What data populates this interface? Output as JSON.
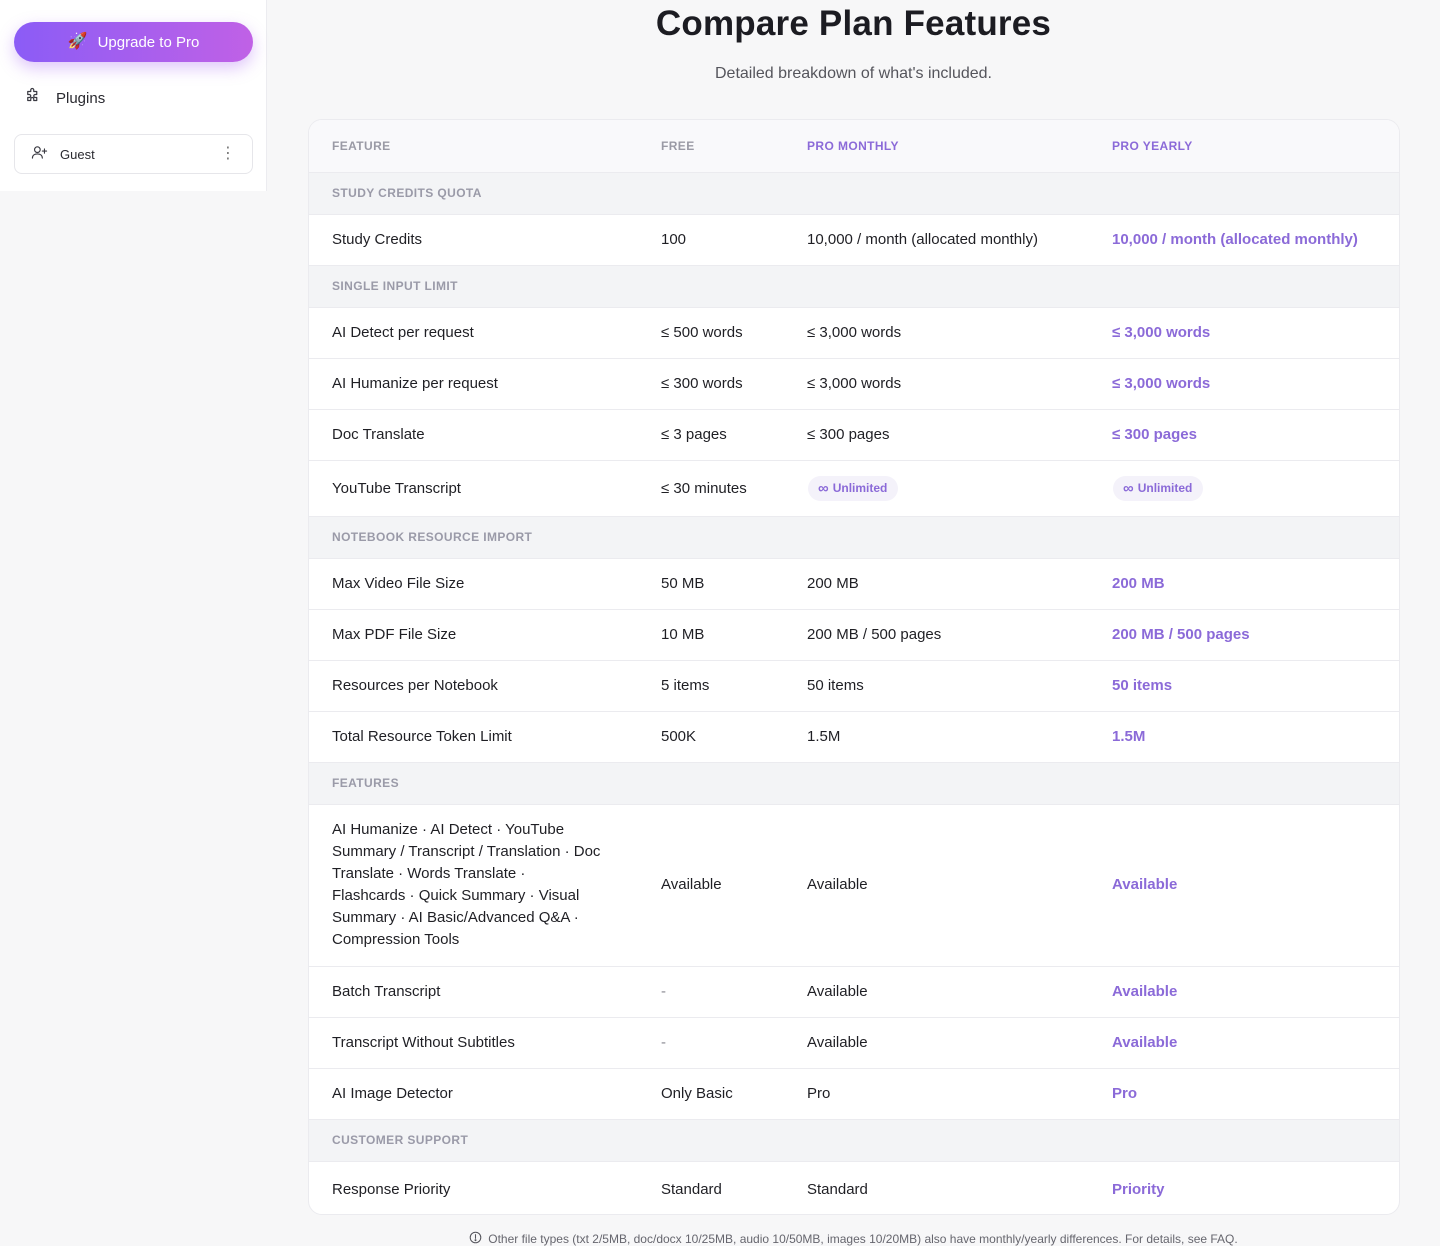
{
  "sidebar": {
    "upgrade_label": "Upgrade to Pro",
    "plugins_label": "Plugins",
    "user_label": "Guest"
  },
  "header": {
    "title": "Compare Plan Features",
    "subtitle": "Detailed breakdown of what's included."
  },
  "table": {
    "columns": [
      "FEATURE",
      "FREE",
      "PRO MONTHLY",
      "PRO YEARLY"
    ],
    "sections": [
      {
        "title": "STUDY CREDITS QUOTA",
        "rows": [
          {
            "feature": "Study Credits",
            "free": "100",
            "pro_monthly": "10,000 / month (allocated monthly)",
            "pro_yearly": "10,000 / month (allocated monthly)"
          }
        ]
      },
      {
        "title": "SINGLE INPUT LIMIT",
        "rows": [
          {
            "feature": "AI Detect per request",
            "free": "≤ 500 words",
            "pro_monthly": "≤ 3,000 words",
            "pro_yearly": "≤ 3,000 words"
          },
          {
            "feature": "AI Humanize per request",
            "free": "≤ 300 words",
            "pro_monthly": "≤ 3,000 words",
            "pro_yearly": "≤ 3,000 words"
          },
          {
            "feature": "Doc Translate",
            "free": "≤ 3 pages",
            "pro_monthly": "≤ 300 pages",
            "pro_yearly": "≤ 300 pages"
          },
          {
            "feature": "YouTube Transcript",
            "free": "≤ 30 minutes",
            "pro_monthly": "Unlimited",
            "pro_yearly": "Unlimited"
          }
        ]
      },
      {
        "title": "NOTEBOOK RESOURCE IMPORT",
        "rows": [
          {
            "feature": "Max Video File Size",
            "free": "50 MB",
            "pro_monthly": "200 MB",
            "pro_yearly": "200 MB"
          },
          {
            "feature": "Max PDF File Size",
            "free": "10 MB",
            "pro_monthly": "200 MB / 500 pages",
            "pro_yearly": "200 MB / 500 pages"
          },
          {
            "feature": "Resources per Notebook",
            "free": "5 items",
            "pro_monthly": "50 items",
            "pro_yearly": "50 items"
          },
          {
            "feature": "Total Resource Token Limit",
            "free": "500K",
            "pro_monthly": "1.5M",
            "pro_yearly": "1.5M"
          }
        ]
      },
      {
        "title": "FEATURES",
        "rows": [
          {
            "feature": "AI Humanize · AI Detect · YouTube Summary / Transcript / Translation · Doc Translate · Words Translate · Flashcards · Quick Summary · Visual Summary · AI Basic/Advanced Q&A · Compression Tools",
            "free": "Available",
            "pro_monthly": "Available",
            "pro_yearly": "Available"
          },
          {
            "feature": "Batch Transcript",
            "free": "-",
            "pro_monthly": "Available",
            "pro_yearly": "Available"
          },
          {
            "feature": "Transcript Without Subtitles",
            "free": "-",
            "pro_monthly": "Available",
            "pro_yearly": "Available"
          },
          {
            "feature": "AI Image Detector",
            "free": "Only Basic",
            "pro_monthly": "Pro",
            "pro_yearly": "Pro"
          }
        ]
      },
      {
        "title": "CUSTOMER SUPPORT",
        "rows": [
          {
            "feature": "Response Priority",
            "free": "Standard",
            "pro_monthly": "Standard",
            "pro_yearly": "Priority"
          }
        ]
      }
    ]
  },
  "footnote": "Other file types (txt 2/5MB, doc/docx 10/25MB, audio 10/50MB, images 10/20MB) also have monthly/yearly differences. For details, see FAQ.",
  "colors": {
    "accent": "#8b6ad8",
    "gradient_start": "#8b5cf6",
    "gradient_end": "#c061e6"
  }
}
